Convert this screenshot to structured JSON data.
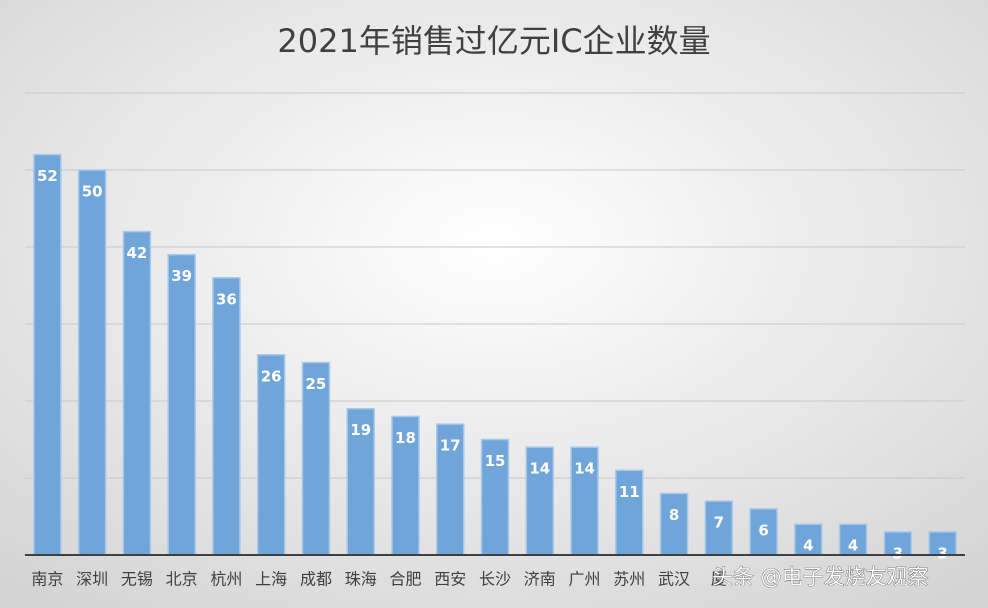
{
  "chart_data": {
    "type": "bar",
    "title": "2021年销售过亿元IC企业数量",
    "categories": [
      "南京",
      "深圳",
      "无锡",
      "北京",
      "杭州",
      "上海",
      "成都",
      "珠海",
      "合肥",
      "西安",
      "长沙",
      "济南",
      "广州",
      "苏州",
      "武汉",
      "厦",
      null,
      null,
      null,
      null,
      null
    ],
    "values": [
      52,
      50,
      42,
      39,
      36,
      26,
      25,
      19,
      18,
      17,
      15,
      14,
      14,
      11,
      8,
      7,
      6,
      4,
      4,
      3,
      3
    ],
    "color": "#6fa5d9",
    "ylim": [
      0,
      60
    ],
    "yticks": [
      0,
      10,
      20,
      30,
      40,
      50,
      60
    ],
    "grid": true
  },
  "watermark": "头条 @电子发烧友观察"
}
